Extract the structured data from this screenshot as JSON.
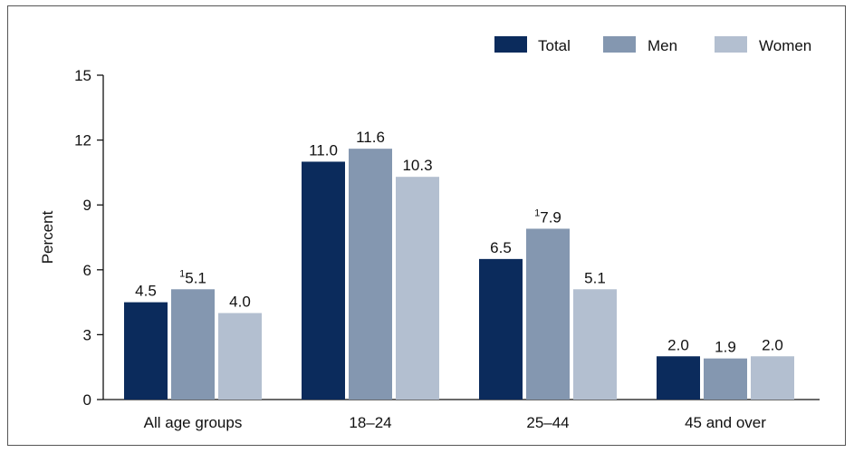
{
  "chart_data": {
    "type": "bar",
    "title": "",
    "xlabel": "",
    "ylabel": "Percent",
    "ylim": [
      0,
      15
    ],
    "yticks": [
      0,
      3,
      6,
      9,
      12,
      15
    ],
    "categories": [
      "All age groups",
      "18–24",
      "25–44",
      "45 and over"
    ],
    "legend_position": "top-right",
    "grid": false,
    "series": [
      {
        "name": "Total",
        "color": "#0b2b5c",
        "values": [
          4.5,
          11.0,
          6.5,
          2.0
        ],
        "labels": [
          "4.5",
          "11.0",
          "6.5",
          "2.0"
        ],
        "footnote_marks": [
          "",
          "",
          "",
          ""
        ]
      },
      {
        "name": "Men",
        "color": "#8497b0",
        "values": [
          5.1,
          11.6,
          7.9,
          1.9
        ],
        "labels": [
          "5.1",
          "11.6",
          "7.9",
          "1.9"
        ],
        "footnote_marks": [
          "1",
          "",
          "1",
          ""
        ]
      },
      {
        "name": "Women",
        "color": "#b3bfd0",
        "values": [
          4.0,
          10.3,
          5.1,
          2.0
        ],
        "labels": [
          "4.0",
          "10.3",
          "5.1",
          "2.0"
        ],
        "footnote_marks": [
          "",
          "",
          "",
          ""
        ]
      }
    ]
  }
}
